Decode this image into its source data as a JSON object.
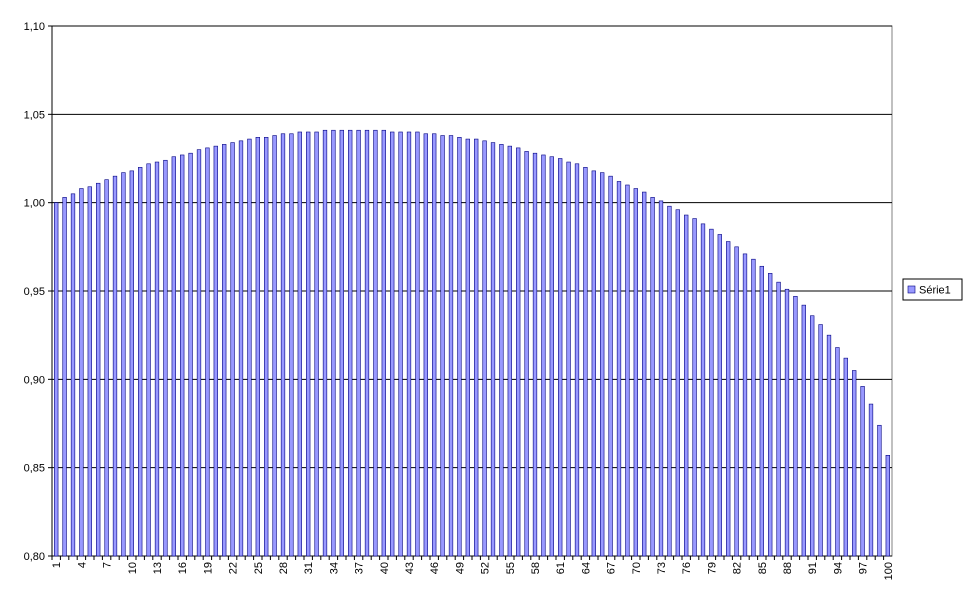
{
  "chart_data": {
    "type": "bar",
    "categories": [
      "1",
      null,
      null,
      "4",
      null,
      null,
      "7",
      null,
      null,
      "10",
      null,
      null,
      "13",
      null,
      null,
      "16",
      null,
      null,
      "19",
      null,
      null,
      "22",
      null,
      null,
      "25",
      null,
      null,
      "28",
      null,
      null,
      "31",
      null,
      null,
      "34",
      null,
      null,
      "37",
      null,
      null,
      "40",
      null,
      null,
      "43",
      null,
      null,
      "46",
      null,
      null,
      "49",
      null,
      null,
      "52",
      null,
      null,
      "55",
      null,
      null,
      "58",
      null,
      null,
      "61",
      null,
      null,
      "64",
      null,
      null,
      "67",
      null,
      null,
      "70",
      null,
      null,
      "73",
      null,
      null,
      "76",
      null,
      null,
      "79",
      null,
      null,
      "82",
      null,
      null,
      "85",
      null,
      null,
      "88",
      null,
      null,
      "91",
      null,
      null,
      "94",
      null,
      null,
      "97",
      null,
      null,
      "100"
    ],
    "series": [
      {
        "name": "Série1",
        "color": "#9999ff",
        "values": [
          1.0,
          1.003,
          1.005,
          1.008,
          1.009,
          1.011,
          1.013,
          1.015,
          1.017,
          1.018,
          1.02,
          1.022,
          1.023,
          1.024,
          1.026,
          1.027,
          1.028,
          1.03,
          1.031,
          1.032,
          1.033,
          1.034,
          1.035,
          1.036,
          1.037,
          1.037,
          1.038,
          1.039,
          1.039,
          1.04,
          1.04,
          1.04,
          1.041,
          1.041,
          1.041,
          1.041,
          1.041,
          1.041,
          1.041,
          1.041,
          1.04,
          1.04,
          1.04,
          1.04,
          1.039,
          1.039,
          1.038,
          1.038,
          1.037,
          1.036,
          1.036,
          1.035,
          1.034,
          1.033,
          1.032,
          1.031,
          1.029,
          1.028,
          1.027,
          1.026,
          1.025,
          1.023,
          1.022,
          1.02,
          1.018,
          1.017,
          1.015,
          1.012,
          1.01,
          1.008,
          1.006,
          1.003,
          1.001,
          0.998,
          0.996,
          0.993,
          0.991,
          0.988,
          0.985,
          0.982,
          0.978,
          0.975,
          0.971,
          0.968,
          0.964,
          0.96,
          0.955,
          0.951,
          0.947,
          0.942,
          0.936,
          0.931,
          0.925,
          0.918,
          0.912,
          0.905,
          0.896,
          0.886,
          0.874,
          0.857
        ]
      }
    ],
    "ylim": [
      0.8,
      1.1
    ],
    "yticks": [
      {
        "value": 0.8,
        "label": "0,80"
      },
      {
        "value": 0.85,
        "label": "0,85"
      },
      {
        "value": 0.9,
        "label": "0,90"
      },
      {
        "value": 0.95,
        "label": "0,95"
      },
      {
        "value": 1.0,
        "label": "1,00"
      },
      {
        "value": 1.05,
        "label": "1,05"
      },
      {
        "value": 1.1,
        "label": "1,10"
      }
    ],
    "grid": true,
    "legend": "right"
  }
}
